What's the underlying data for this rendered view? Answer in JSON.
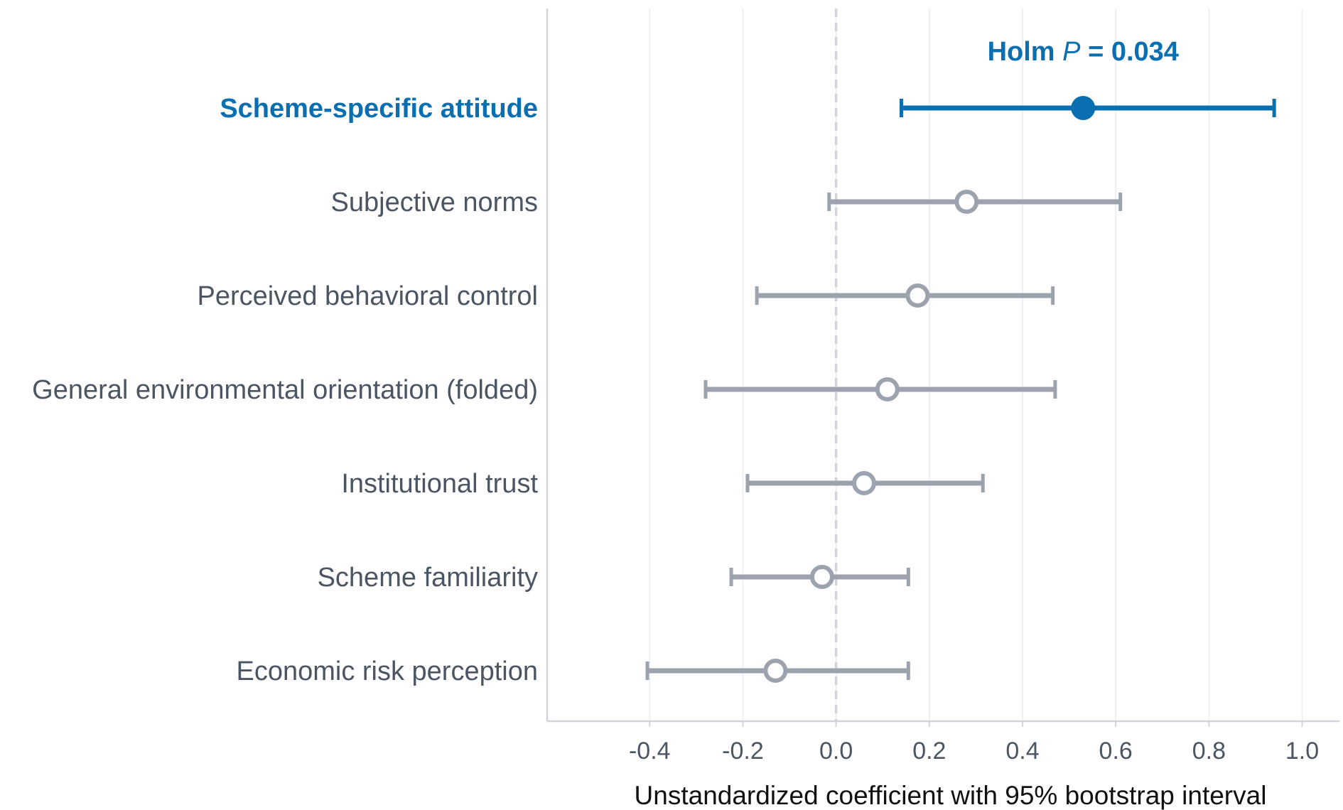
{
  "chart_data": {
    "type": "forest",
    "xlabel": "Unstandardized coefficient with 95% bootstrap interval",
    "xlim": [
      -0.62,
      1.08
    ],
    "xticks": [
      -0.4,
      -0.2,
      0.0,
      0.2,
      0.4,
      0.6,
      0.8,
      1.0
    ],
    "xtick_labels": [
      "-0.4",
      "-0.2",
      "0.0",
      "0.2",
      "0.4",
      "0.6",
      "0.8",
      "1.0"
    ],
    "reference_line": 0.0,
    "grid": "vertical",
    "rows": [
      {
        "label": "Scheme-specific attitude",
        "estimate": 0.53,
        "ci_low": 0.14,
        "ci_high": 0.94,
        "highlight": true
      },
      {
        "label": "Subjective norms",
        "estimate": 0.28,
        "ci_low": -0.015,
        "ci_high": 0.61,
        "highlight": false
      },
      {
        "label": "Perceived behavioral control",
        "estimate": 0.175,
        "ci_low": -0.17,
        "ci_high": 0.465,
        "highlight": false
      },
      {
        "label": "General environmental orientation (folded)",
        "estimate": 0.11,
        "ci_low": -0.28,
        "ci_high": 0.47,
        "highlight": false
      },
      {
        "label": "Institutional trust",
        "estimate": 0.06,
        "ci_low": -0.19,
        "ci_high": 0.315,
        "highlight": false
      },
      {
        "label": "Scheme familiarity",
        "estimate": -0.03,
        "ci_low": -0.225,
        "ci_high": 0.155,
        "highlight": false
      },
      {
        "label": "Economic risk perception",
        "estimate": -0.13,
        "ci_low": -0.405,
        "ci_high": 0.155,
        "highlight": false
      }
    ],
    "annotation": {
      "prefix": "Holm ",
      "italic": "P",
      "suffix": " = 0.034",
      "row": 0,
      "x": 0.53
    },
    "colors": {
      "highlight": "#0a6fb0",
      "muted": "#9ca3af",
      "axis": "#d1d5db",
      "grid": "#eef0f3",
      "reference": "#d1d5db"
    }
  }
}
